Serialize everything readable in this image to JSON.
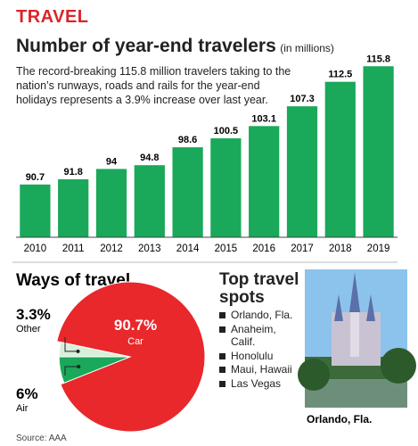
{
  "section": "TRAVEL",
  "chart_data": [
    {
      "type": "bar",
      "title": "Number of year-end travelers",
      "subtitle": "(in millions)",
      "description": "The record-breaking 115.8 million travelers taking to the nation’s runways, roads and rails for the year-end holidays represents a 3.9% increase over last year.",
      "categories": [
        "2010",
        "2011",
        "2012",
        "2013",
        "2014",
        "2015",
        "2016",
        "2017",
        "2018",
        "2019"
      ],
      "values": [
        90.7,
        91.8,
        94,
        94.8,
        98.6,
        100.5,
        103.1,
        107.3,
        112.5,
        115.8
      ],
      "color": "#1aa85a",
      "ylim": [
        79.5,
        118.5
      ]
    },
    {
      "type": "pie",
      "title": "Ways of travel",
      "categories": [
        "Car",
        "Air",
        "Other"
      ],
      "values": [
        90.7,
        6,
        3.3
      ],
      "value_labels": [
        "90.7%",
        "6%",
        "3.3%"
      ],
      "colors": [
        "#e8282b",
        "#1aa85a",
        "#d8efd9"
      ]
    }
  ],
  "top_spots": {
    "title": "Top travel spots",
    "items": [
      "Orlando, Fla.",
      "Anaheim, Calif.",
      "Honolulu",
      "Maui, Hawaii",
      "Las Vegas"
    ]
  },
  "photo_caption": "Orlando, Fla.",
  "source": "Source: AAA"
}
